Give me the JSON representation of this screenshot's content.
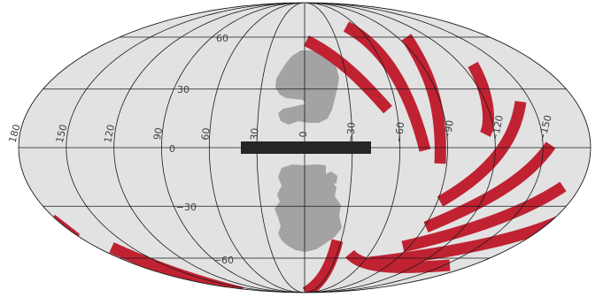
{
  "projection": "mollweide",
  "colors": {
    "background": "#ffffff",
    "sphere": "#e2e2e2",
    "graticule": "#1a1a1a",
    "regions": "#a3a3a3",
    "stripes": "#c02232",
    "band": "#262626",
    "labels": "#404040"
  },
  "longitude_labels": [
    "180",
    "150",
    "120",
    "90",
    "60",
    "30",
    "0",
    "−30",
    "−60",
    "−90",
    "−120",
    "−150"
  ],
  "latitude_labels": [
    "60",
    "30",
    "0",
    "−30",
    "−60"
  ],
  "meridians_deg": [
    -180,
    -150,
    -120,
    -90,
    -60,
    -30,
    0,
    30,
    60,
    90,
    120,
    150,
    180
  ],
  "parallels_deg": [
    -60,
    -30,
    0,
    30,
    60
  ],
  "features": [
    {
      "name": "equatorial-band",
      "type": "band",
      "lon_from": 20,
      "lon_to": -25,
      "lat_from": -2.3,
      "lat_to": 2.3
    },
    {
      "name": "northern-gray-region",
      "type": "region"
    },
    {
      "name": "southern-gray-region",
      "type": "region"
    },
    {
      "name": "red-survey-stripes",
      "type": "stripes",
      "count": 12
    }
  ]
}
